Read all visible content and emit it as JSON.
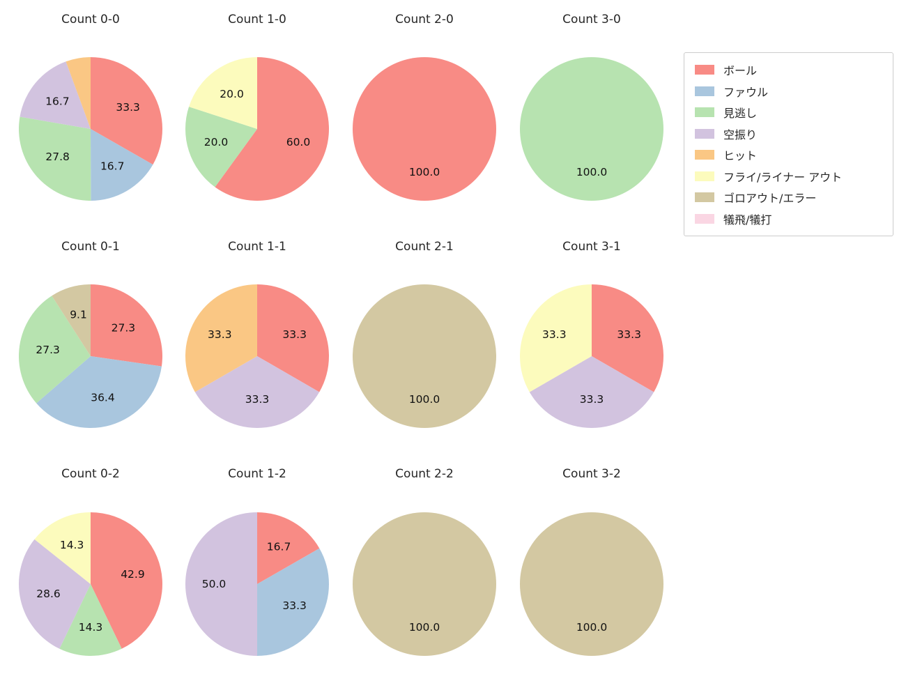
{
  "legend": {
    "items": [
      {
        "label": "ボール",
        "color": "#f88b85"
      },
      {
        "label": "ファウル",
        "color": "#a9c6de"
      },
      {
        "label": "見逃し",
        "color": "#b7e3b0"
      },
      {
        "label": "空振り",
        "color": "#d2c3df"
      },
      {
        "label": "ヒット",
        "color": "#fac784"
      },
      {
        "label": "フライ/ライナー アウト",
        "color": "#fcfbbd"
      },
      {
        "label": "ゴロアウト/エラー",
        "color": "#d3c8a2"
      },
      {
        "label": "犠飛/犠打",
        "color": "#fad6e3"
      }
    ]
  },
  "pie_style": {
    "start_angle": "top",
    "direction": "clockwise",
    "label_position": "inside"
  },
  "chart_data": [
    {
      "type": "pie",
      "title": "Count 0-0",
      "slices": [
        {
          "label": "ボール",
          "value": 33.3,
          "display": "33.3"
        },
        {
          "label": "ファウル",
          "value": 16.7,
          "display": "16.7"
        },
        {
          "label": "見逃し",
          "value": 27.8,
          "display": "27.8"
        },
        {
          "label": "空振り",
          "value": 16.7,
          "display": "16.7"
        },
        {
          "label": "ヒット",
          "value": 5.6,
          "show_label": false
        }
      ]
    },
    {
      "type": "pie",
      "title": "Count 1-0",
      "slices": [
        {
          "label": "ボール",
          "value": 60.0,
          "display": "60.0"
        },
        {
          "label": "見逃し",
          "value": 20.0,
          "display": "20.0"
        },
        {
          "label": "フライ/ライナー アウト",
          "value": 20.0,
          "display": "20.0"
        }
      ]
    },
    {
      "type": "pie",
      "title": "Count 2-0",
      "slices": [
        {
          "label": "ボール",
          "value": 100.0,
          "display": "100.0"
        }
      ]
    },
    {
      "type": "pie",
      "title": "Count 3-0",
      "slices": [
        {
          "label": "見逃し",
          "value": 100.0,
          "display": "100.0"
        }
      ]
    },
    {
      "type": "pie",
      "title": "Count 0-1",
      "slices": [
        {
          "label": "ボール",
          "value": 27.3,
          "display": "27.3"
        },
        {
          "label": "ファウル",
          "value": 36.4,
          "display": "36.4"
        },
        {
          "label": "見逃し",
          "value": 27.3,
          "display": "27.3"
        },
        {
          "label": "ゴロアウト/エラー",
          "value": 9.1,
          "display": "9.1"
        }
      ]
    },
    {
      "type": "pie",
      "title": "Count 1-1",
      "slices": [
        {
          "label": "ボール",
          "value": 33.3,
          "display": "33.3"
        },
        {
          "label": "空振り",
          "value": 33.3,
          "display": "33.3"
        },
        {
          "label": "ヒット",
          "value": 33.3,
          "display": "33.3"
        }
      ]
    },
    {
      "type": "pie",
      "title": "Count 2-1",
      "slices": [
        {
          "label": "ゴロアウト/エラー",
          "value": 100.0,
          "display": "100.0"
        }
      ]
    },
    {
      "type": "pie",
      "title": "Count 3-1",
      "slices": [
        {
          "label": "ボール",
          "value": 33.3,
          "display": "33.3"
        },
        {
          "label": "空振り",
          "value": 33.3,
          "display": "33.3"
        },
        {
          "label": "フライ/ライナー アウト",
          "value": 33.3,
          "display": "33.3"
        }
      ]
    },
    {
      "type": "pie",
      "title": "Count 0-2",
      "slices": [
        {
          "label": "ボール",
          "value": 42.9,
          "display": "42.9"
        },
        {
          "label": "見逃し",
          "value": 14.3,
          "display": "14.3"
        },
        {
          "label": "空振り",
          "value": 28.6,
          "display": "28.6"
        },
        {
          "label": "フライ/ライナー アウト",
          "value": 14.3,
          "display": "14.3"
        }
      ]
    },
    {
      "type": "pie",
      "title": "Count 1-2",
      "slices": [
        {
          "label": "ボール",
          "value": 16.7,
          "display": "16.7"
        },
        {
          "label": "ファウル",
          "value": 33.3,
          "display": "33.3"
        },
        {
          "label": "空振り",
          "value": 50.0,
          "display": "50.0"
        }
      ]
    },
    {
      "type": "pie",
      "title": "Count 2-2",
      "slices": [
        {
          "label": "ゴロアウト/エラー",
          "value": 100.0,
          "display": "100.0"
        }
      ]
    },
    {
      "type": "pie",
      "title": "Count 3-2",
      "slices": [
        {
          "label": "ゴロアウト/エラー",
          "value": 100.0,
          "display": "100.0"
        }
      ]
    }
  ]
}
